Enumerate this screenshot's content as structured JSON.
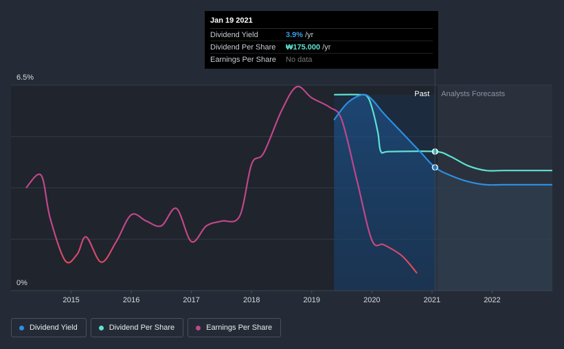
{
  "tooltip": {
    "date": "Jan 19 2021",
    "rows": [
      {
        "label": "Dividend Yield",
        "value": "3.9%",
        "unit": "/yr",
        "color": "#3e9be6"
      },
      {
        "label": "Dividend Per Share",
        "value": "₩175.000",
        "unit": "/yr",
        "color": "#5fe3d2"
      },
      {
        "label": "Earnings Per Share",
        "value": "No data",
        "unit": "",
        "color": "#777777"
      }
    ]
  },
  "zones": {
    "past": "Past",
    "forecast": "Analysts Forecasts"
  },
  "legend": [
    {
      "label": "Dividend Yield",
      "color": "#2d8fe0"
    },
    {
      "label": "Dividend Per Share",
      "color": "#5fe3d2"
    },
    {
      "label": "Earnings Per Share",
      "color": "#c2468a"
    }
  ],
  "chart_data": {
    "type": "line",
    "ylim": [
      0,
      6.5
    ],
    "ytick_labels": [
      "6.5%",
      "0%"
    ],
    "xtick_labels": [
      "2015",
      "2016",
      "2017",
      "2018",
      "2019",
      "2020",
      "2021",
      "2022"
    ],
    "xtick_values": [
      2015,
      2016,
      2017,
      2018,
      2019,
      2020,
      2021,
      2022
    ],
    "x_range": [
      2014.0,
      2023.0
    ],
    "past_end": 2021.05,
    "highlight_start": 2019.37,
    "colors": {
      "dividend_yield": "#2d8fe0",
      "dividend_per_share": "#5fe3d2",
      "earnings_per_share": "#c2468a",
      "earnings_per_share_low": "#e04a5a"
    },
    "series": [
      {
        "name": "Dividend Yield",
        "key": "dividend_yield",
        "x": [
          2019.37,
          2019.6,
          2019.85,
          2020.0,
          2020.2,
          2020.5,
          2020.8,
          2021.05,
          2021.3,
          2021.6,
          2021.9,
          2022.2,
          2023.0
        ],
        "y": [
          5.4,
          5.95,
          6.2,
          6.05,
          5.6,
          5.0,
          4.4,
          3.9,
          3.65,
          3.45,
          3.35,
          3.35,
          3.35
        ]
      },
      {
        "name": "Dividend Per Share",
        "key": "dividend_per_share",
        "x": [
          2019.37,
          2019.8,
          2019.92,
          2020.0,
          2020.1,
          2020.15,
          2020.3,
          2021.05,
          2021.3,
          2021.6,
          2021.9,
          2022.2,
          2023.0
        ],
        "y": [
          6.2,
          6.2,
          6.15,
          5.8,
          5.0,
          4.4,
          4.4,
          4.4,
          4.25,
          3.95,
          3.8,
          3.8,
          3.8
        ]
      },
      {
        "name": "Earnings Per Share",
        "key": "earnings_per_share",
        "x": [
          2014.25,
          2014.5,
          2014.65,
          2014.9,
          2015.1,
          2015.25,
          2015.5,
          2015.75,
          2016.0,
          2016.25,
          2016.5,
          2016.75,
          2017.0,
          2017.25,
          2017.5,
          2017.8,
          2018.0,
          2018.2,
          2018.5,
          2018.75,
          2019.0,
          2019.3,
          2019.5,
          2019.75,
          2020.0,
          2020.2,
          2020.5,
          2020.75
        ],
        "y": [
          3.25,
          3.65,
          2.3,
          0.95,
          1.15,
          1.7,
          0.9,
          1.55,
          2.4,
          2.2,
          2.05,
          2.6,
          1.55,
          2.05,
          2.2,
          2.35,
          4.0,
          4.35,
          5.7,
          6.45,
          6.1,
          5.8,
          5.4,
          3.5,
          1.6,
          1.45,
          1.1,
          0.55
        ]
      }
    ]
  }
}
